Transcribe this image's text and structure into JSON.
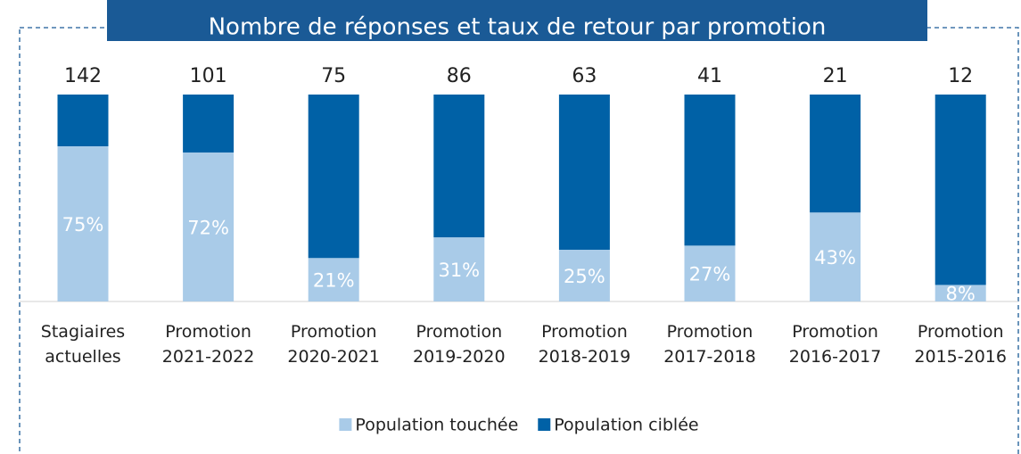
{
  "chart_data": {
    "type": "bar",
    "stacked": true,
    "title": "Nombre de réponses et taux de retour par promotion",
    "categories": [
      [
        "Stagiaires",
        "actuelles"
      ],
      [
        "Promotion",
        "2021-2022"
      ],
      [
        "Promotion",
        "2020-2021"
      ],
      [
        "Promotion",
        "2019-2020"
      ],
      [
        "Promotion",
        "2018-2019"
      ],
      [
        "Promotion",
        "2017-2018"
      ],
      [
        "Promotion",
        "2016-2017"
      ],
      [
        "Promotion",
        "2015-2016"
      ]
    ],
    "responses": [
      142,
      101,
      75,
      86,
      63,
      41,
      21,
      12
    ],
    "series": [
      {
        "name": "Population touchée",
        "color": "#a9cbe8",
        "values": [
          75,
          72,
          21,
          31,
          25,
          27,
          43,
          8
        ],
        "value_labels": [
          "75%",
          "72%",
          "21%",
          "31%",
          "25%",
          "27%",
          "43%",
          "8%"
        ]
      },
      {
        "name": "Population ciblée",
        "color": "#0061a6",
        "values": [
          25,
          28,
          79,
          69,
          75,
          73,
          57,
          92
        ]
      }
    ],
    "ylim": [
      0,
      100
    ]
  }
}
